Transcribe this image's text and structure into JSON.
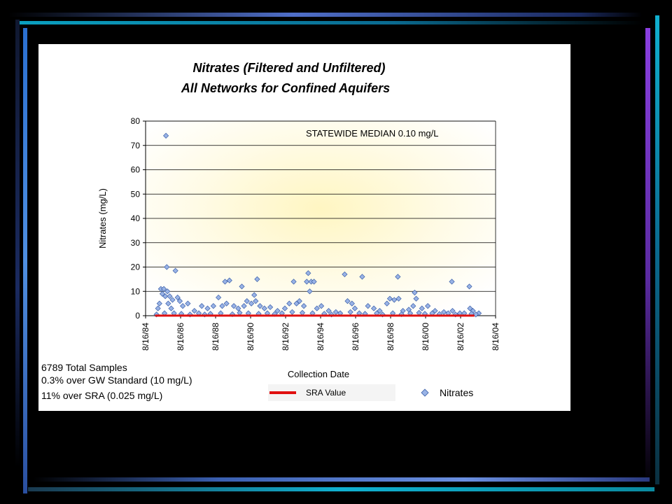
{
  "slide": {
    "colors": {
      "bar_blue": "#4f6fc9",
      "bar_purple": "#8a3fe0",
      "bar_teal": "#0aa0c0",
      "bar_dark": "#1a1f3a"
    }
  },
  "chart_data": {
    "type": "scatter",
    "title": "Nitrates (Filtered and Unfiltered)",
    "subtitle": "All Networks for Confined Aquifers",
    "xlabel": "Collection Date",
    "ylabel": "Nitrates (mg/L)",
    "ylim": [
      0,
      80
    ],
    "yticks": [
      "0",
      "10",
      "20",
      "30",
      "40",
      "50",
      "60",
      "70",
      "80"
    ],
    "xlim": [
      "1984-08-16",
      "2004-08-16"
    ],
    "xticks": [
      "8/16/84",
      "8/16/86",
      "8/16/88",
      "8/16/90",
      "8/16/92",
      "8/16/94",
      "8/16/96",
      "8/16/98",
      "8/16/00",
      "8/16/02",
      "8/16/04"
    ],
    "grid": true,
    "annotation": "STATEWIDE MEDIAN 0.10 mg/L",
    "notes": [
      "6789 Total Samples",
      "0.3% over GW Standard (10 mg/L)",
      "11% over SRA (0.025 mg/L)"
    ],
    "legend": [
      {
        "label": "SRA Value",
        "color": "#e01010",
        "marker": "line"
      },
      {
        "label": "Nitrates",
        "color": "#99b3e6",
        "marker": "diamond"
      }
    ],
    "reference_line": {
      "name": "SRA Value",
      "y": 0.025,
      "x": [
        "1985-03-01",
        "2003-06-01"
      ]
    },
    "series": [
      {
        "name": "Nitrates",
        "points": [
          [
            "1985-10-15",
            74
          ],
          [
            "1985-11-01",
            20
          ],
          [
            "1986-05-01",
            18.5
          ],
          [
            "1985-07-01",
            11
          ],
          [
            "1985-09-01",
            11
          ],
          [
            "1985-11-15",
            10
          ],
          [
            "1985-08-01",
            9
          ],
          [
            "1985-10-01",
            8
          ],
          [
            "1986-01-01",
            8
          ],
          [
            "1986-06-15",
            7.5
          ],
          [
            "1986-03-01",
            6.5
          ],
          [
            "1985-06-01",
            5
          ],
          [
            "1985-12-01",
            5
          ],
          [
            "1986-08-01",
            6
          ],
          [
            "1987-01-15",
            5
          ],
          [
            "1986-10-01",
            4
          ],
          [
            "1985-05-01",
            3
          ],
          [
            "1986-02-01",
            3
          ],
          [
            "1987-06-01",
            2
          ],
          [
            "1987-11-01",
            4
          ],
          [
            "1988-03-01",
            3
          ],
          [
            "1988-07-01",
            4
          ],
          [
            "1988-10-15",
            7.5
          ],
          [
            "1989-01-01",
            4
          ],
          [
            "1989-03-01",
            14
          ],
          [
            "1989-06-01",
            14.5
          ],
          [
            "1989-04-01",
            5
          ],
          [
            "1989-09-01",
            4
          ],
          [
            "1989-12-01",
            3
          ],
          [
            "1990-02-15",
            12
          ],
          [
            "1990-04-01",
            4
          ],
          [
            "1990-06-01",
            6
          ],
          [
            "1990-09-01",
            5
          ],
          [
            "1990-11-01",
            8.5
          ],
          [
            "1991-01-01",
            15
          ],
          [
            "1990-12-01",
            6
          ],
          [
            "1991-03-01",
            4
          ],
          [
            "1991-06-01",
            3
          ],
          [
            "1991-10-01",
            3.5
          ],
          [
            "1992-03-01",
            2
          ],
          [
            "1992-08-01",
            3
          ],
          [
            "1992-11-01",
            5
          ],
          [
            "1993-02-01",
            14
          ],
          [
            "1993-04-01",
            5
          ],
          [
            "1993-06-01",
            6
          ],
          [
            "1993-09-01",
            4
          ],
          [
            "1993-11-01",
            14
          ],
          [
            "1993-12-01",
            17.5
          ],
          [
            "1994-01-01",
            10
          ],
          [
            "1994-02-01",
            14
          ],
          [
            "1994-04-01",
            14
          ],
          [
            "1994-06-01",
            3
          ],
          [
            "1994-09-01",
            4
          ],
          [
            "1995-02-01",
            2
          ],
          [
            "1995-07-01",
            1.5
          ],
          [
            "1996-01-01",
            17
          ],
          [
            "1996-03-01",
            6
          ],
          [
            "1996-06-01",
            5
          ],
          [
            "1996-08-01",
            3
          ],
          [
            "1997-01-01",
            16
          ],
          [
            "1997-05-01",
            4
          ],
          [
            "1997-09-01",
            3
          ],
          [
            "1998-01-01",
            2
          ],
          [
            "1998-06-01",
            5
          ],
          [
            "1998-08-01",
            7
          ],
          [
            "1998-11-01",
            6.5
          ],
          [
            "1999-01-15",
            16
          ],
          [
            "1999-02-01",
            7
          ],
          [
            "1999-05-01",
            2
          ],
          [
            "1999-09-01",
            2.5
          ],
          [
            "2000-01-01",
            9.5
          ],
          [
            "2000-02-01",
            7
          ],
          [
            "1999-12-01",
            4
          ],
          [
            "2000-06-01",
            3
          ],
          [
            "2000-10-01",
            4
          ],
          [
            "2001-03-01",
            2
          ],
          [
            "2001-09-01",
            1.5
          ],
          [
            "2002-02-15",
            14
          ],
          [
            "2002-03-01",
            2
          ],
          [
            "2002-08-01",
            1
          ],
          [
            "2003-02-15",
            12
          ],
          [
            "2003-03-01",
            3
          ],
          [
            "2003-05-01",
            2
          ],
          [
            "2003-09-01",
            1
          ],
          [
            "1985-04-01",
            0.5
          ],
          [
            "1985-09-15",
            1
          ],
          [
            "1986-04-01",
            1
          ],
          [
            "1986-09-01",
            0.8
          ],
          [
            "1987-03-01",
            0.5
          ],
          [
            "1987-09-01",
            1
          ],
          [
            "1988-01-01",
            0.5
          ],
          [
            "1988-05-01",
            0.8
          ],
          [
            "1988-12-01",
            1
          ],
          [
            "1989-08-01",
            0.6
          ],
          [
            "1990-01-01",
            1.2
          ],
          [
            "1990-07-01",
            1
          ],
          [
            "1991-02-01",
            0.8
          ],
          [
            "1991-08-01",
            1
          ],
          [
            "1992-01-01",
            0.7
          ],
          [
            "1992-06-01",
            1
          ],
          [
            "1993-01-01",
            1.5
          ],
          [
            "1993-08-01",
            1.2
          ],
          [
            "1994-03-01",
            1
          ],
          [
            "1994-11-01",
            0.8
          ],
          [
            "1995-04-01",
            0.5
          ],
          [
            "1995-10-01",
            1
          ],
          [
            "1996-05-01",
            1.5
          ],
          [
            "1996-11-01",
            1
          ],
          [
            "1997-03-01",
            0.8
          ],
          [
            "1997-11-01",
            1
          ],
          [
            "1998-03-01",
            0.5
          ],
          [
            "1998-10-01",
            1
          ],
          [
            "1999-04-01",
            0.6
          ],
          [
            "1999-10-01",
            1
          ],
          [
            "2000-04-01",
            1.2
          ],
          [
            "2000-08-01",
            0.8
          ],
          [
            "2001-01-01",
            1
          ],
          [
            "2001-06-01",
            0.7
          ],
          [
            "2001-12-01",
            1
          ],
          [
            "2002-05-01",
            0.5
          ],
          [
            "2002-11-01",
            1
          ],
          [
            "2003-04-01",
            0.8
          ],
          [
            "2003-07-01",
            0.5
          ]
        ]
      }
    ]
  }
}
